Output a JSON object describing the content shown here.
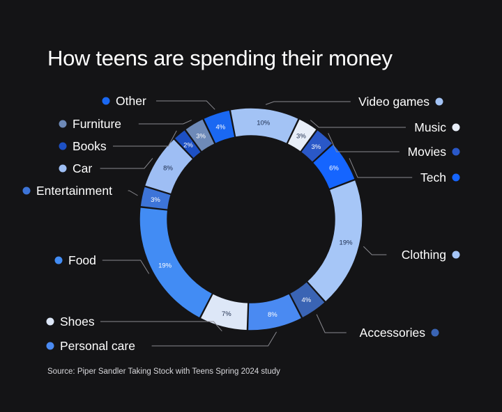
{
  "title": "How teens are spending their money",
  "source": "Source: Piper Sandler Taking Stock with Teens Spring 2024 study",
  "chart_data": {
    "type": "pie",
    "style": "donut",
    "unit": "%",
    "slices": [
      {
        "name": "Video games",
        "value": 10,
        "label": "10%",
        "color": "#a3c3f5",
        "text_color": "#1a2a4a",
        "side": "right"
      },
      {
        "name": "Music",
        "value": 3,
        "label": "3%",
        "color": "#e8eef8",
        "text_color": "#1a2a4a",
        "side": "right"
      },
      {
        "name": "Movies",
        "value": 3,
        "label": "3%",
        "color": "#2a58c8",
        "text_color": "#ffffff",
        "side": "right"
      },
      {
        "name": "Tech",
        "value": 6,
        "label": "6%",
        "color": "#1565ff",
        "text_color": "#ffffff",
        "side": "right"
      },
      {
        "name": "Clothing",
        "value": 19,
        "label": "19%",
        "color": "#a6c6f7",
        "text_color": "#1a2a4a",
        "side": "right"
      },
      {
        "name": "Accessories",
        "value": 4,
        "label": "4%",
        "color": "#3a64b4",
        "text_color": "#ffffff",
        "side": "right"
      },
      {
        "name": "Personal care",
        "value": 8,
        "label": "8%",
        "color": "#4a8af2",
        "text_color": "#ffffff",
        "side": "left"
      },
      {
        "name": "Shoes",
        "value": 7,
        "label": "7%",
        "color": "#dde7f7",
        "text_color": "#1a2a4a",
        "side": "left"
      },
      {
        "name": "Food",
        "value": 19,
        "label": "19%",
        "color": "#428cf4",
        "text_color": "#ffffff",
        "side": "left"
      },
      {
        "name": "Entertainment",
        "value": 3,
        "label": "3%",
        "color": "#3d74d8",
        "text_color": "#ffffff",
        "side": "left"
      },
      {
        "name": "Car",
        "value": 8,
        "label": "8%",
        "color": "#9ebef4",
        "text_color": "#1a2a4a",
        "side": "left"
      },
      {
        "name": "Books",
        "value": 2,
        "label": "2%",
        "color": "#1d50c4",
        "text_color": "#ffffff",
        "side": "left"
      },
      {
        "name": "Furniture",
        "value": 3,
        "label": "3%",
        "color": "#6e8ab8",
        "text_color": "#ffffff",
        "side": "left"
      },
      {
        "name": "Other",
        "value": 4,
        "label": "4%",
        "color": "#1a68f2",
        "text_color": "#ffffff",
        "side": "left"
      }
    ]
  }
}
